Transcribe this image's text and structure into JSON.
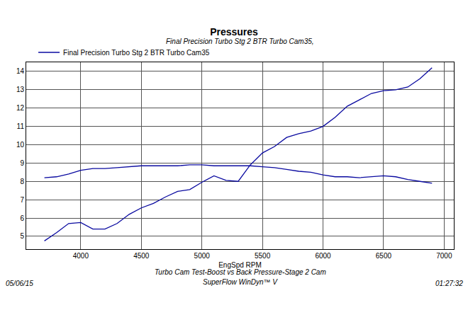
{
  "chart_data": {
    "type": "line",
    "title": "Pressures",
    "subtitle": "Final Precision Turbo Stg 2 BTR Turbo Cam35,",
    "x_label": "EngSpd RPM",
    "annotations": [
      "Turbo Cam Test-Boost vs Back Pressure-Stage 2 Cam",
      "SuperFlow WinDyn™ V",
      "05/06/15",
      "01:27:32"
    ],
    "x": [
      3700,
      3800,
      3900,
      4000,
      4100,
      4200,
      4300,
      4400,
      4500,
      4600,
      4700,
      4800,
      4900,
      5000,
      5100,
      5200,
      5300,
      5400,
      5500,
      5600,
      5700,
      5800,
      5900,
      6000,
      6100,
      6200,
      6300,
      6400,
      6500,
      6600,
      6700,
      6800,
      6900
    ],
    "series": [
      {
        "name": "Final Precision Turbo Stg 2 BTR Turbo Cam35",
        "color": "#0a0aa0",
        "values": [
          8.2,
          8.25,
          8.4,
          8.6,
          8.7,
          8.7,
          8.75,
          8.8,
          8.85,
          8.85,
          8.85,
          8.85,
          8.9,
          8.9,
          8.85,
          8.85,
          8.85,
          8.85,
          8.8,
          8.75,
          8.65,
          8.55,
          8.5,
          8.35,
          8.25,
          8.25,
          8.2,
          8.25,
          8.3,
          8.25,
          8.1,
          8.0,
          7.9
        ]
      },
      {
        "color": "#0a0aa0",
        "values": [
          4.75,
          5.2,
          5.7,
          5.75,
          5.4,
          5.4,
          5.7,
          6.2,
          6.55,
          6.8,
          7.15,
          7.45,
          7.55,
          7.95,
          8.3,
          8.05,
          8.0,
          8.9,
          9.55,
          9.9,
          10.4,
          10.6,
          10.75,
          11.0,
          11.5,
          12.1,
          12.45,
          12.8,
          12.95,
          13.0,
          13.15,
          13.6,
          14.2
        ]
      }
    ],
    "xlim": [
      3550,
      7080
    ],
    "xticks": [
      4000,
      4500,
      5000,
      5500,
      6000,
      6500,
      7000
    ],
    "ylim": [
      4.3,
      14.5
    ],
    "yticks": [
      5,
      6,
      7,
      8,
      9,
      10,
      11,
      12,
      13,
      14
    ],
    "grid": true,
    "legend": "top left"
  }
}
